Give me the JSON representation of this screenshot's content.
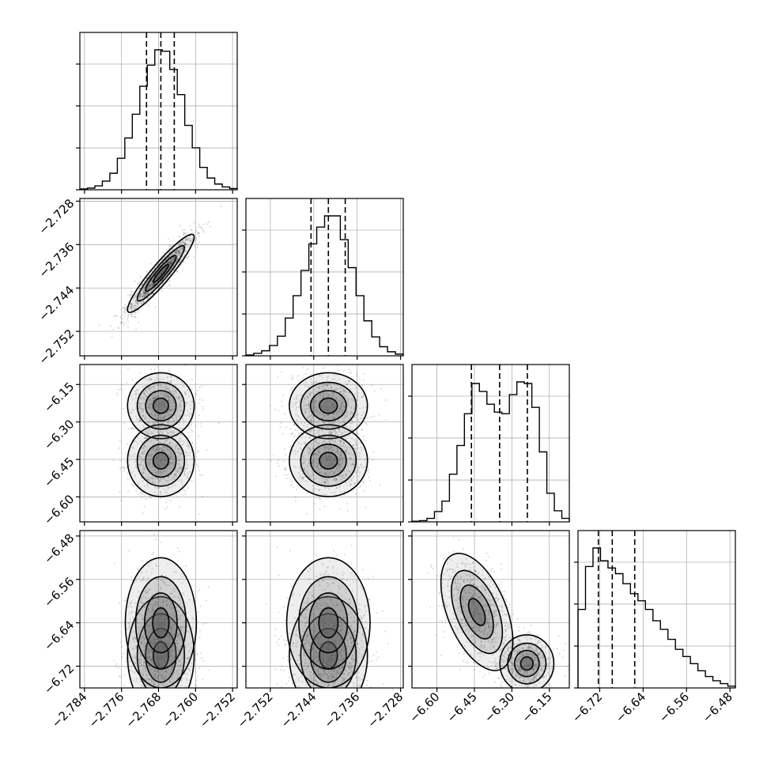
{
  "chart_data": {
    "type": "corner",
    "grid": true,
    "parameters": [
      {
        "range": [
          -2.785,
          -2.751
        ],
        "ticks": [
          -2.784,
          -2.776,
          -2.768,
          -2.76,
          -2.752
        ],
        "tick_labels": [
          "−2.784",
          "−2.776",
          "−2.768",
          "−2.760",
          "−2.752"
        ],
        "quantiles": [
          -2.7706,
          -2.7675,
          -2.7646
        ]
      },
      {
        "range": [
          -2.7565,
          -2.7275
        ],
        "ticks": [
          -2.752,
          -2.744,
          -2.736,
          -2.728
        ],
        "tick_labels": [
          "−2.752",
          "−2.744",
          "−2.736",
          "−2.728"
        ],
        "quantiles": [
          -2.7445,
          -2.7413,
          -2.7382
        ]
      },
      {
        "range": [
          -6.7,
          -6.07
        ],
        "ticks": [
          -6.6,
          -6.45,
          -6.3,
          -6.15
        ],
        "tick_labels": [
          "−6.60",
          "−6.45",
          "−6.30",
          "−6.15"
        ],
        "quantiles": [
          -6.462,
          -6.349,
          -6.238
        ]
      },
      {
        "range": [
          -6.76,
          -6.47
        ],
        "ticks": [
          -6.72,
          -6.64,
          -6.56,
          -6.48
        ],
        "tick_labels": [
          "−6.72",
          "−6.64",
          "−6.56",
          "−6.48"
        ],
        "quantiles": [
          -6.7225,
          -6.6969,
          -6.6555
        ]
      }
    ],
    "histograms": [
      [
        0.6,
        1.2,
        2.8,
        6.2,
        11.8,
        22.5,
        37.0,
        54.0,
        74.0,
        89.0,
        100.0,
        99.0,
        86.0,
        68.0,
        46.0,
        30.0,
        16.0,
        8.4,
        4.1,
        2.0,
        0.9
      ],
      [
        0.6,
        1.8,
        3.6,
        7.4,
        14.0,
        27.0,
        43.0,
        61.0,
        80.0,
        92.0,
        100.0,
        100.0,
        83.0,
        63.0,
        43.0,
        25.0,
        13.5,
        6.5,
        2.9,
        1.2
      ],
      [
        0.4,
        0.8,
        2.2,
        6.5,
        13.0,
        30.0,
        48.0,
        68.0,
        87.0,
        82.0,
        74.0,
        69.0,
        68.0,
        80.0,
        88.0,
        87.0,
        72.0,
        44.0,
        18.0,
        7.0,
        2.2
      ],
      [
        55.0,
        85.0,
        98.0,
        89.0,
        84.0,
        80.0,
        73.0,
        66.0,
        61.0,
        55.0,
        47.0,
        41.0,
        34.0,
        27.0,
        22.0,
        17.0,
        12.0,
        8.0,
        5.0,
        3.0,
        1.2
      ]
    ]
  }
}
